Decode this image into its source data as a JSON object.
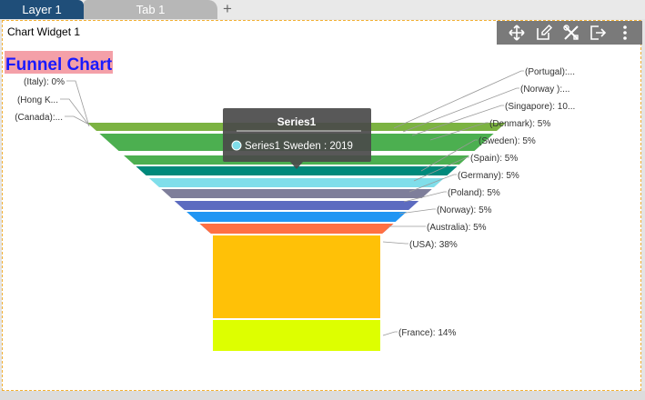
{
  "tabs": {
    "active": "Layer 1",
    "inactive": "Tab 1",
    "add": "+"
  },
  "widget": {
    "title": "Chart Widget 1",
    "toolbar_icons": [
      "move-icon",
      "edit-icon",
      "tools-icon",
      "export-icon",
      "more-vertical-icon"
    ]
  },
  "chart_data": {
    "type": "funnel",
    "title": "Funnel Chart",
    "series_name": "Series1",
    "segments": [
      {
        "label": "(Portugal):...",
        "value": 0,
        "color": "#7cb342"
      },
      {
        "label": "(Norway ):...",
        "value": 0,
        "color": "#4caf50"
      },
      {
        "label": "(Singapore): 10...",
        "value": 10,
        "color": "#4caf50"
      },
      {
        "label": "(Denmark): 5%",
        "value": 5,
        "color": "#00897b"
      },
      {
        "label": "(Sweden): 5%",
        "value": 5,
        "color": "#80deea"
      },
      {
        "label": "(Spain): 5%",
        "value": 5,
        "color": "#7e7e9a"
      },
      {
        "label": "(Germany): 5%",
        "value": 5,
        "color": "#5c6bc0"
      },
      {
        "label": "(Poland): 5%",
        "value": 5,
        "color": "#2196f3"
      },
      {
        "label": "(Norway): 5%",
        "value": 5,
        "color": "#3f51b5"
      },
      {
        "label": "(Australia): 5%",
        "value": 5,
        "color": "#673ab7"
      },
      {
        "label": "(USA): 38%",
        "value": 38,
        "color": "#ff7043"
      },
      {
        "label": "(France): 14%",
        "value": 14,
        "color": "#ffc107"
      }
    ],
    "left_labels": [
      "(Italy): 0%",
      "(Hong K...",
      "(Canada):..."
    ],
    "neck_color": "#ffc107",
    "bottom_color": "#ddff00",
    "tooltip": {
      "title": "Series1",
      "text": "Series1 Sweden : 2019"
    }
  }
}
